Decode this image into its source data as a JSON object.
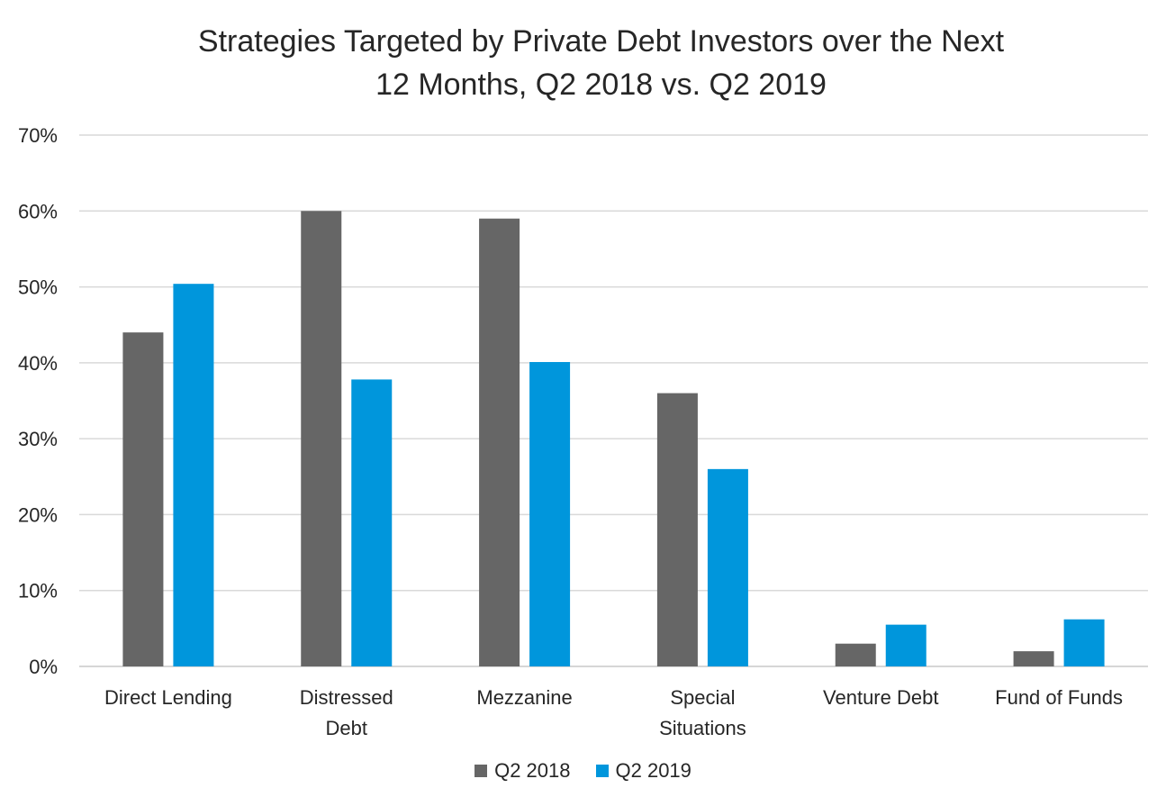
{
  "chart_data": {
    "type": "bar",
    "title_lines": [
      "Strategies Targeted by Private Debt Investors over the Next",
      "12 Months, Q2 2018 vs. Q2 2019"
    ],
    "categories": [
      [
        "Direct Lending"
      ],
      [
        "Distressed",
        "Debt"
      ],
      [
        "Mezzanine"
      ],
      [
        "Special",
        "Situations"
      ],
      [
        "Venture Debt"
      ],
      [
        "Fund of Funds"
      ]
    ],
    "series": [
      {
        "name": "Q2 2018",
        "color": "#666666",
        "values": [
          44,
          60,
          59,
          36,
          3,
          2
        ]
      },
      {
        "name": "Q2 2019",
        "color": "#0096DC",
        "values": [
          50.4,
          37.8,
          40.1,
          26,
          5.5,
          6.2
        ]
      }
    ],
    "ylim": [
      0,
      70
    ],
    "yticks": [
      "0%",
      "10%",
      "20%",
      "30%",
      "40%",
      "50%",
      "60%",
      "70%"
    ],
    "grid": true,
    "legend_position": "bottom"
  }
}
